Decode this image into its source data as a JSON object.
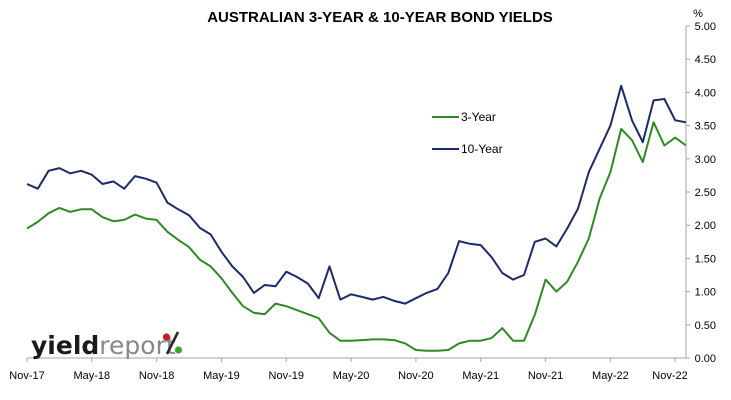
{
  "chart_data": {
    "type": "line",
    "title": "AUSTRALIAN 3-YEAR & 10-YEAR BOND YIELDS",
    "ylabel": "%",
    "ylim": [
      0,
      5
    ],
    "yticks": [
      "0.00",
      "0.50",
      "1.00",
      "1.50",
      "2.00",
      "2.50",
      "3.00",
      "3.50",
      "4.00",
      "4.50",
      "5.00"
    ],
    "xlim": [
      "2017-11",
      "2022-12"
    ],
    "xticks": [
      "Nov-17",
      "May-18",
      "Nov-18",
      "May-19",
      "Nov-19",
      "May-20",
      "Nov-20",
      "May-21",
      "Nov-21",
      "May-22",
      "Nov-22"
    ],
    "grid": false,
    "legend_position": "center-right",
    "series": [
      {
        "name": "3-Year",
        "color": "#2e8b22",
        "x": [
          "2017-11",
          "2017-12",
          "2018-01",
          "2018-02",
          "2018-03",
          "2018-04",
          "2018-05",
          "2018-06",
          "2018-07",
          "2018-08",
          "2018-09",
          "2018-10",
          "2018-11",
          "2018-12",
          "2019-01",
          "2019-02",
          "2019-03",
          "2019-04",
          "2019-05",
          "2019-06",
          "2019-07",
          "2019-08",
          "2019-09",
          "2019-10",
          "2019-11",
          "2019-12",
          "2020-01",
          "2020-02",
          "2020-03",
          "2020-04",
          "2020-05",
          "2020-06",
          "2020-07",
          "2020-08",
          "2020-09",
          "2020-10",
          "2020-11",
          "2020-12",
          "2021-01",
          "2021-02",
          "2021-03",
          "2021-04",
          "2021-05",
          "2021-06",
          "2021-07",
          "2021-08",
          "2021-09",
          "2021-10",
          "2021-11",
          "2021-12",
          "2022-01",
          "2022-02",
          "2022-03",
          "2022-04",
          "2022-05",
          "2022-06",
          "2022-07",
          "2022-08",
          "2022-09",
          "2022-10",
          "2022-11",
          "2022-12"
        ],
        "values": [
          1.95,
          2.05,
          2.18,
          2.26,
          2.2,
          2.24,
          2.24,
          2.12,
          2.06,
          2.08,
          2.16,
          2.1,
          2.08,
          1.9,
          1.78,
          1.67,
          1.48,
          1.38,
          1.2,
          0.98,
          0.78,
          0.68,
          0.66,
          0.82,
          0.78,
          0.72,
          0.66,
          0.6,
          0.38,
          0.26,
          0.26,
          0.27,
          0.28,
          0.28,
          0.27,
          0.22,
          0.12,
          0.11,
          0.11,
          0.12,
          0.22,
          0.26,
          0.26,
          0.3,
          0.45,
          0.26,
          0.26,
          0.65,
          1.18,
          1.0,
          1.15,
          1.45,
          1.8,
          2.4,
          2.8,
          3.45,
          3.28,
          2.95,
          3.55,
          3.2,
          3.32,
          3.2
        ]
      },
      {
        "name": "10-Year",
        "color": "#1c2a6b",
        "x": [
          "2017-11",
          "2017-12",
          "2018-01",
          "2018-02",
          "2018-03",
          "2018-04",
          "2018-05",
          "2018-06",
          "2018-07",
          "2018-08",
          "2018-09",
          "2018-10",
          "2018-11",
          "2018-12",
          "2019-01",
          "2019-02",
          "2019-03",
          "2019-04",
          "2019-05",
          "2019-06",
          "2019-07",
          "2019-08",
          "2019-09",
          "2019-10",
          "2019-11",
          "2019-12",
          "2020-01",
          "2020-02",
          "2020-03",
          "2020-04",
          "2020-05",
          "2020-06",
          "2020-07",
          "2020-08",
          "2020-09",
          "2020-10",
          "2020-11",
          "2020-12",
          "2021-01",
          "2021-02",
          "2021-03",
          "2021-04",
          "2021-05",
          "2021-06",
          "2021-07",
          "2021-08",
          "2021-09",
          "2021-10",
          "2021-11",
          "2021-12",
          "2022-01",
          "2022-02",
          "2022-03",
          "2022-04",
          "2022-05",
          "2022-06",
          "2022-07",
          "2022-08",
          "2022-09",
          "2022-10",
          "2022-11",
          "2022-12"
        ],
        "values": [
          2.62,
          2.55,
          2.82,
          2.86,
          2.78,
          2.82,
          2.76,
          2.62,
          2.66,
          2.55,
          2.74,
          2.7,
          2.64,
          2.34,
          2.24,
          2.15,
          1.96,
          1.86,
          1.6,
          1.38,
          1.22,
          0.98,
          1.1,
          1.08,
          1.3,
          1.22,
          1.12,
          0.9,
          1.38,
          0.88,
          0.96,
          0.92,
          0.88,
          0.92,
          0.86,
          0.82,
          0.9,
          0.98,
          1.04,
          1.28,
          1.76,
          1.72,
          1.7,
          1.52,
          1.28,
          1.18,
          1.25,
          1.75,
          1.8,
          1.68,
          1.95,
          2.25,
          2.8,
          3.15,
          3.5,
          4.1,
          3.58,
          3.25,
          3.88,
          3.9,
          3.58,
          3.55
        ]
      }
    ]
  },
  "logo": {
    "part1": "yield",
    "part2": "report",
    "mark": "%"
  },
  "colors": {
    "axis": "#a6a6a6",
    "logo_red": "#cc1b1b",
    "logo_green": "#3aa63a"
  }
}
